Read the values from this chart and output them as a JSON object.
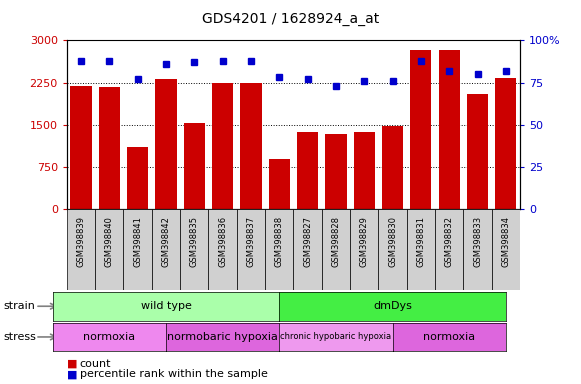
{
  "title": "GDS4201 / 1628924_a_at",
  "samples": [
    "GSM398839",
    "GSM398840",
    "GSM398841",
    "GSM398842",
    "GSM398835",
    "GSM398836",
    "GSM398837",
    "GSM398838",
    "GSM398827",
    "GSM398828",
    "GSM398829",
    "GSM398830",
    "GSM398831",
    "GSM398832",
    "GSM398833",
    "GSM398834"
  ],
  "counts": [
    2190,
    2170,
    1100,
    2310,
    1540,
    2250,
    2250,
    900,
    1380,
    1340,
    1380,
    1470,
    2820,
    2820,
    2050,
    2330
  ],
  "percentiles": [
    88,
    88,
    77,
    86,
    87,
    88,
    88,
    78,
    77,
    73,
    76,
    76,
    88,
    82,
    80,
    82
  ],
  "bar_color": "#cc0000",
  "marker_color": "#0000cc",
  "left_ylim": [
    0,
    3000
  ],
  "right_ylim": [
    0,
    100
  ],
  "left_yticks": [
    0,
    750,
    1500,
    2250,
    3000
  ],
  "right_yticks": [
    0,
    25,
    50,
    75,
    100
  ],
  "right_yticklabels": [
    "0",
    "25",
    "50",
    "75",
    "100%"
  ],
  "strain_groups": [
    {
      "label": "wild type",
      "start": 0,
      "end": 7,
      "color": "#aaffaa"
    },
    {
      "label": "dmDys",
      "start": 8,
      "end": 15,
      "color": "#44ee44"
    }
  ],
  "stress_groups": [
    {
      "label": "normoxia",
      "start": 0,
      "end": 3,
      "color": "#ee88ee"
    },
    {
      "label": "normobaric hypoxia",
      "start": 4,
      "end": 7,
      "color": "#dd66dd"
    },
    {
      "label": "chronic hypobaric hypoxia",
      "start": 8,
      "end": 11,
      "color": "#ee99ee"
    },
    {
      "label": "normoxia",
      "start": 12,
      "end": 15,
      "color": "#dd66dd"
    }
  ],
  "legend_count_color": "#cc0000",
  "legend_pct_color": "#0000cc",
  "bg_color": "#ffffff",
  "tick_bg": "#cccccc"
}
